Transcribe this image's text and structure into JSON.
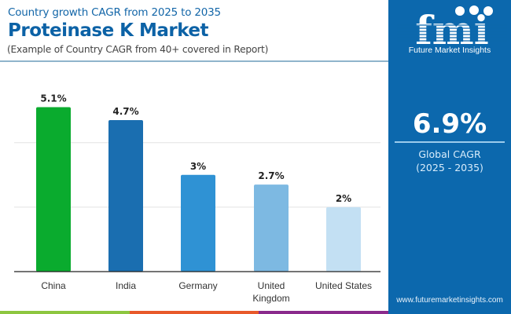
{
  "header": {
    "subtitle": "Country growth CAGR from 2025 to 2035",
    "title": "Proteinase K Market",
    "note": "(Example of Country CAGR from 40+ covered in Report)"
  },
  "sidebar": {
    "logo_text": "Future Market Insights",
    "logo_letters": "fmi",
    "global_value": "6.9%",
    "global_label": "Global CAGR",
    "global_period": "(2025 - 2035)",
    "url": "www.futuremarketinsights.com",
    "background": "#0c68ad"
  },
  "footer_strip": [
    "#8dc63f",
    "#e8592a",
    "#8a2a8c"
  ],
  "chart_data": {
    "type": "bar",
    "title": "Proteinase K Market",
    "subtitle": "Country growth CAGR from 2025 to 2035",
    "xlabel": "",
    "ylabel": "",
    "categories": [
      "China",
      "India",
      "Germany",
      "United Kingdom",
      "United States"
    ],
    "category_lines": [
      [
        "China"
      ],
      [
        "India"
      ],
      [
        "Germany"
      ],
      [
        "United",
        "Kingdom"
      ],
      [
        "United States"
      ]
    ],
    "values": [
      5.1,
      4.7,
      3.0,
      2.7,
      2.0
    ],
    "data_labels": [
      "5.1%",
      "4.7%",
      "3%",
      "2.7%",
      "2%"
    ],
    "colors": [
      "#0aab2e",
      "#1a6eb0",
      "#2f92d4",
      "#7db9e2",
      "#c3e0f3"
    ],
    "ylim": [
      0,
      5.6
    ],
    "gridlines": [
      2,
      4
    ],
    "grid": true,
    "legend": "none"
  }
}
